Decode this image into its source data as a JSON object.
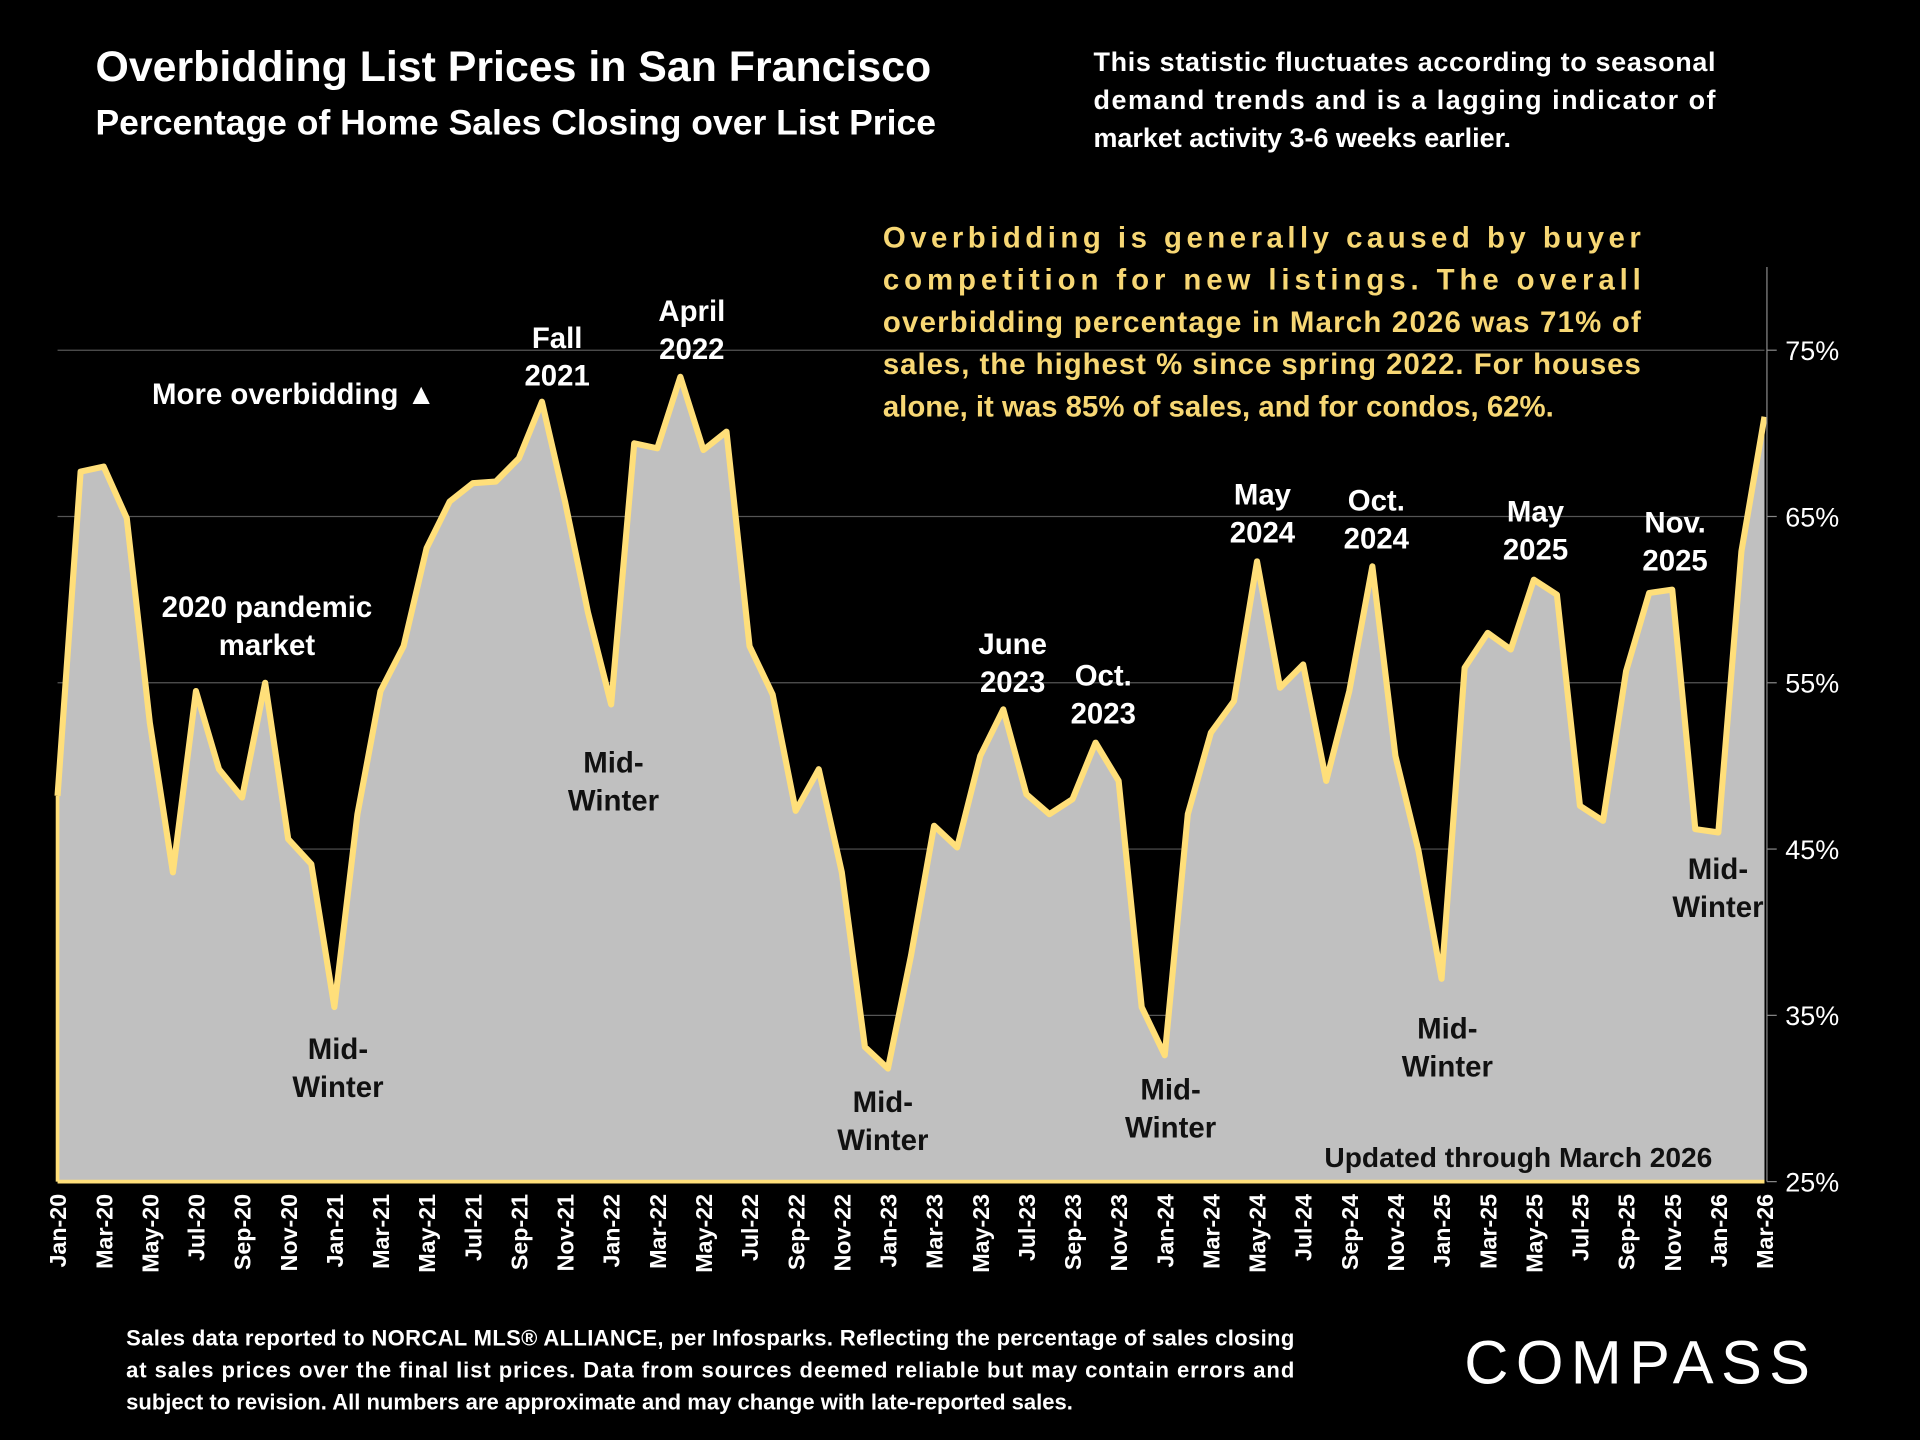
{
  "header": {
    "title": "Overbidding List Prices in San Francisco",
    "subtitle": "Percentage of Home Sales Closing over List Price",
    "note_lines": [
      "This statistic fluctuates according to seasonal",
      "demand trends and is a lagging indicator of",
      "market activity 3-6 weeks earlier."
    ]
  },
  "callout_lines": [
    "Overbidding is generally caused by buyer",
    "competition for new listings. The overall",
    "overbidding percentage in March 2026 was 71% of",
    "sales, the highest % since spring 2022. For houses",
    "alone, it was 85% of sales, and for condos, 62%."
  ],
  "chart_data": {
    "type": "area",
    "title": "Overbidding List Prices in San Francisco",
    "subtitle": "Percentage of Home Sales Closing over List Price",
    "xlabel": "",
    "ylabel": "",
    "ylim": [
      25,
      80
    ],
    "y_ticks": [
      "25%",
      "35%",
      "45%",
      "55%",
      "65%",
      "75%"
    ],
    "y_tick_values": [
      25,
      35,
      45,
      55,
      65,
      75
    ],
    "y_axis_side": "right",
    "grid": true,
    "x_tick_labels": [
      "Jan-20",
      "Mar-20",
      "May-20",
      "Jul-20",
      "Sep-20",
      "Nov-20",
      "Jan-21",
      "Mar-21",
      "May-21",
      "Jul-21",
      "Sep-21",
      "Nov-21",
      "Jan-22",
      "Mar-22",
      "May-22",
      "Jul-22",
      "Sep-22",
      "Nov-22",
      "Jan-23",
      "Mar-23",
      "May-23",
      "Jul-23",
      "Sep-23",
      "Nov-23",
      "Jan-24",
      "Mar-24",
      "May-24",
      "Jul-24",
      "Sep-24",
      "Nov-24",
      "Jan-25",
      "Mar-25",
      "May-25",
      "Jul-25",
      "Sep-25",
      "Nov-25",
      "Jan-26",
      "Mar-26"
    ],
    "x_start": "2020-01",
    "x_end": "2026-03",
    "values": [
      48.2,
      67.7,
      68.0,
      64.9,
      52.6,
      43.6,
      54.5,
      49.8,
      48.1,
      55.0,
      45.6,
      44.1,
      35.5,
      47.1,
      54.5,
      57.2,
      63.1,
      65.9,
      67.0,
      67.1,
      68.5,
      71.9,
      65.9,
      59.2,
      53.7,
      69.4,
      69.1,
      73.4,
      69.0,
      70.1,
      57.2,
      54.3,
      47.3,
      49.8,
      43.6,
      33.1,
      31.8,
      38.6,
      46.4,
      45.1,
      50.6,
      53.4,
      48.3,
      47.1,
      48.0,
      51.4,
      49.1,
      35.5,
      32.6,
      47.1,
      52.0,
      53.9,
      62.3,
      54.7,
      56.1,
      49.1,
      54.5,
      62.0,
      50.6,
      44.9,
      37.2,
      55.9,
      58.0,
      57.0,
      61.2,
      60.3,
      47.6,
      46.7,
      55.7,
      60.4,
      60.6,
      46.2,
      46.0,
      62.9,
      71.0
    ],
    "colors": {
      "line": "#ffdf7a",
      "fill": "#c0c0c0",
      "callout_text": "#f7d774",
      "background": "#000000"
    },
    "annotations": [
      {
        "lines": [
          "More overbidding ▲"
        ]
      },
      {
        "lines": [
          "2020 pandemic",
          "market"
        ]
      },
      {
        "lines": [
          "Mid-",
          "Winter"
        ]
      },
      {
        "lines": [
          "Fall",
          "2021"
        ]
      },
      {
        "lines": [
          "April",
          "2022"
        ]
      },
      {
        "lines": [
          "Mid-",
          "Winter"
        ]
      },
      {
        "lines": [
          "Mid-",
          "Winter"
        ]
      },
      {
        "lines": [
          "June",
          "2023"
        ]
      },
      {
        "lines": [
          "Oct.",
          "2023"
        ]
      },
      {
        "lines": [
          "Mid-",
          "Winter"
        ]
      },
      {
        "lines": [
          "May",
          "2024"
        ]
      },
      {
        "lines": [
          "Oct.",
          "2024"
        ]
      },
      {
        "lines": [
          "Mid-",
          "Winter"
        ]
      },
      {
        "lines": [
          "May",
          "2025"
        ]
      },
      {
        "lines": [
          "Nov.",
          "2025"
        ]
      },
      {
        "lines": [
          "Mid-",
          "Winter"
        ]
      },
      {
        "lines": [
          "Updated through March 2026"
        ]
      }
    ]
  },
  "footer": {
    "source_lines": [
      "Sales data reported to NORCAL MLS® ALLIANCE, per Infosparks. Reflecting the percentage of sales closing",
      "at sales prices over the final list prices. Data from sources deemed reliable but may contain errors and",
      "subject to revision. All numbers are approximate and may change with late-reported sales."
    ],
    "logo": "COMPASS"
  }
}
